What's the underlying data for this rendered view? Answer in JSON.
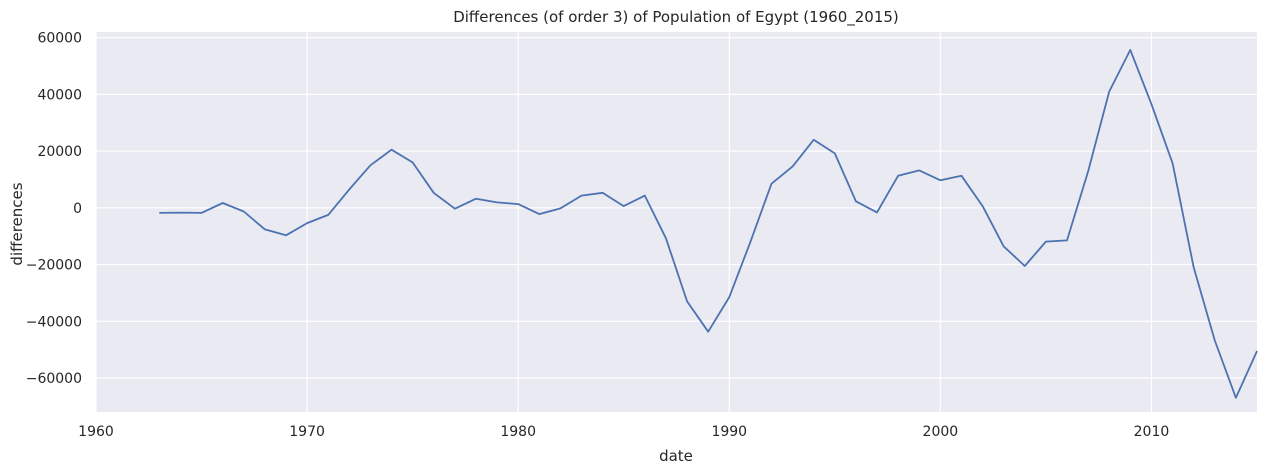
{
  "chart_data": {
    "type": "line",
    "title": "Differences (of order 3) of Population of Egypt (1960_2015)",
    "xlabel": "date",
    "ylabel": "differences",
    "xlim": [
      1960,
      2015
    ],
    "ylim": [
      -72000,
      62000
    ],
    "x_ticks": [
      1960,
      1970,
      1980,
      1990,
      2000,
      2010
    ],
    "y_ticks": [
      -60000,
      -40000,
      -20000,
      0,
      20000,
      40000,
      60000
    ],
    "grid": true,
    "colors": {
      "background": "#eaeaf2",
      "grid": "#ffffff",
      "line": "#4c72b0"
    },
    "series": [
      {
        "x": [
          1963,
          1964,
          1965,
          1966,
          1967,
          1968,
          1969,
          1970,
          1971,
          1972,
          1973,
          1974,
          1975,
          1976,
          1977,
          1978,
          1979,
          1980,
          1981,
          1982,
          1983,
          1984,
          1985,
          1986,
          1987,
          1988,
          1989,
          1990,
          1991,
          1992,
          1993,
          1994,
          1995,
          1996,
          1997,
          1998,
          1999,
          2000,
          2001,
          2002,
          2003,
          2004,
          2005,
          2006,
          2007,
          2008,
          2009,
          2010,
          2011,
          2012,
          2013,
          2014,
          2015
        ],
        "values": [
          -1800,
          -1700,
          -1800,
          1700,
          -1300,
          -7600,
          -9700,
          -5400,
          -2500,
          6500,
          15000,
          20500,
          16000,
          5300,
          -300,
          3200,
          1900,
          1300,
          -2200,
          -200,
          4300,
          5300,
          600,
          4300,
          -10700,
          -33000,
          -43700,
          -31500,
          -12000,
          8500,
          14600,
          24000,
          19200,
          2300,
          -1600,
          11300,
          13200,
          9700,
          11300,
          600,
          -13600,
          -20500,
          -11900,
          -11500,
          12800,
          41000,
          55700,
          36500,
          15700,
          -21000,
          -46800,
          -67000,
          -50500
        ]
      }
    ]
  }
}
